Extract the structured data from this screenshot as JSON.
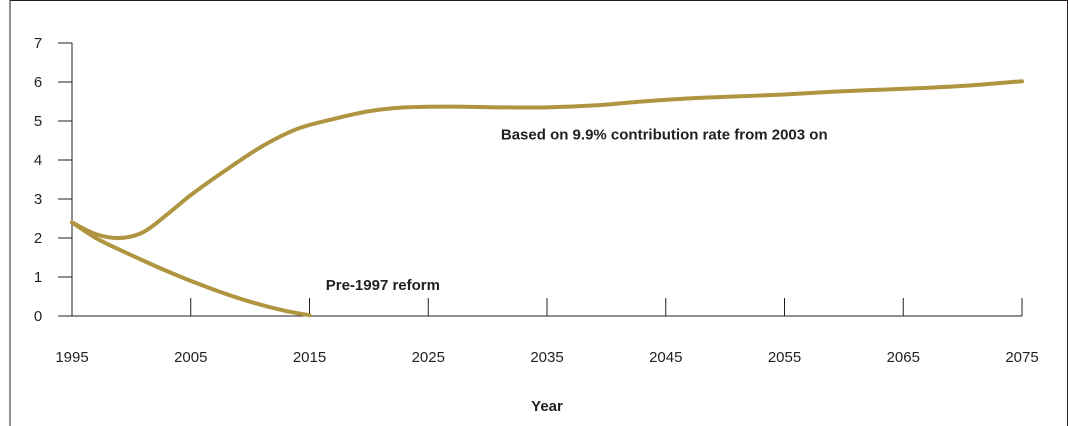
{
  "chart_data": {
    "type": "line",
    "title": "",
    "xlabel": "Year",
    "ylabel": "",
    "xlim": [
      1995,
      2075
    ],
    "ylim": [
      0,
      7
    ],
    "x_ticks": [
      "1995",
      "2005",
      "2015",
      "2025",
      "2035",
      "2045",
      "2055",
      "2065",
      "2075"
    ],
    "y_ticks": [
      "0",
      "1",
      "2",
      "3",
      "4",
      "5",
      "6",
      "7"
    ],
    "grid": false,
    "legend": "none",
    "series_color": "#b09540",
    "series": [
      {
        "name": "Based on 9.9% contribution rate from 2003 on",
        "x": [
          1995,
          1997,
          1999,
          2001,
          2003,
          2005,
          2008,
          2011,
          2014,
          2017,
          2020,
          2023,
          2027,
          2031,
          2035,
          2039,
          2043,
          2047,
          2051,
          2055,
          2059,
          2063,
          2067,
          2071,
          2075
        ],
        "y": [
          2.4,
          2.1,
          2.0,
          2.15,
          2.6,
          3.1,
          3.75,
          4.35,
          4.8,
          5.05,
          5.25,
          5.35,
          5.37,
          5.35,
          5.35,
          5.4,
          5.5,
          5.58,
          5.63,
          5.68,
          5.75,
          5.8,
          5.85,
          5.92,
          6.02
        ]
      },
      {
        "name": "Pre-1997 reform",
        "x": [
          1995,
          1997,
          1999,
          2001,
          2003,
          2005,
          2007,
          2009,
          2011,
          2013,
          2015
        ],
        "y": [
          2.4,
          2.0,
          1.7,
          1.42,
          1.15,
          0.9,
          0.67,
          0.46,
          0.28,
          0.13,
          0.02
        ]
      }
    ],
    "annotations": [
      {
        "text": "Based on 9.9% contribution rate from 2003 on",
        "x": 2036,
        "y": 4.65
      },
      {
        "text": "Pre-1997 reform",
        "x": 2021,
        "y": 0.8
      }
    ]
  }
}
